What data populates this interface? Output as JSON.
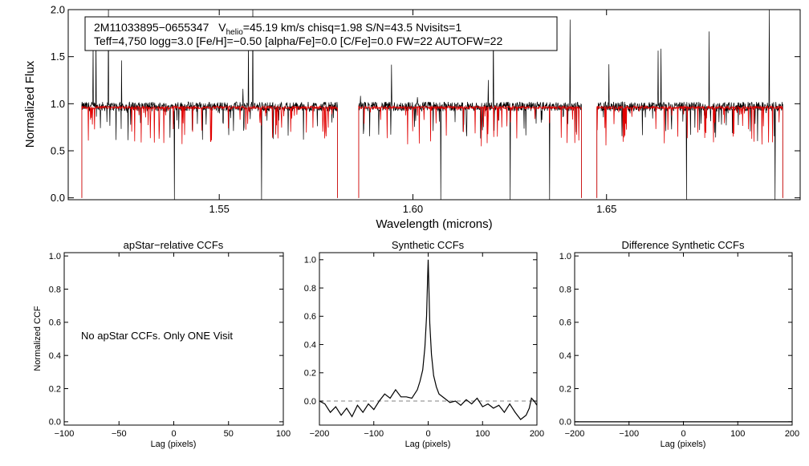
{
  "colors": {
    "observed": "#000000",
    "model": "#e00000",
    "zero_line": "#808080"
  },
  "chart_data": [
    {
      "type": "line",
      "id": "spectrum",
      "xlabel": "Wavelength (microns)",
      "ylabel": "Normalized Flux",
      "xlim": [
        1.511,
        1.7
      ],
      "ylim": [
        -0.02,
        2.0
      ],
      "xticks": [
        "1.55",
        "1.60",
        "1.65"
      ],
      "xtick_values": [
        1.55,
        1.6,
        1.65
      ],
      "yticks": [
        "0.0",
        "0.5",
        "1.0",
        "1.5",
        "2.0"
      ],
      "ytick_values": [
        0.0,
        0.5,
        1.0,
        1.5,
        2.0
      ],
      "chips": [
        [
          1.5145,
          1.5805
        ],
        [
          1.586,
          1.6435
        ],
        [
          1.6475,
          1.6955
        ]
      ],
      "series": [
        {
          "color": "black",
          "baseline": 0.97
        },
        {
          "color": "red",
          "baseline": 0.96
        }
      ],
      "info": {
        "line1_id": "2M11033895−0655347",
        "line1_v": "V",
        "line1_sub": "helio",
        "line1_rest": "=45.19 km/s  chisq=1.98  S/N=43.5  Nvisits=1",
        "line2": "Teff=4,750 logg=3.0 [Fe/H]=−0.50 [alpha/Fe]=0.0 [C/Fe]=0.0 FW=22 AUTOFW=22"
      }
    },
    {
      "type": "line",
      "id": "apstar_ccf",
      "title": "apStar−relative CCFs",
      "xlabel": "Lag (pixels)",
      "ylabel": "Normalized CCF",
      "xlim": [
        -100,
        100
      ],
      "ylim": [
        -0.02,
        1.02
      ],
      "xticks": [
        "−100",
        "−50",
        "0",
        "50",
        "100"
      ],
      "xtick_values": [
        -100,
        -50,
        0,
        50,
        100
      ],
      "yticks": [
        "0.0",
        "0.2",
        "0.4",
        "0.6",
        "0.8",
        "1.0"
      ],
      "ytick_values": [
        0.0,
        0.2,
        0.4,
        0.6,
        0.8,
        1.0
      ],
      "annotation": "No apStar CCFs.  Only ONE Visit",
      "series": []
    },
    {
      "type": "line",
      "id": "synthetic_ccf",
      "title": "Synthetic CCFs",
      "xlabel": "Lag (pixels)",
      "xlim": [
        -200,
        200
      ],
      "ylim": [
        -0.17,
        1.05
      ],
      "xticks": [
        "−200",
        "−100",
        "0",
        "100",
        "200"
      ],
      "xtick_values": [
        -200,
        -100,
        0,
        100,
        200
      ],
      "yticks": [
        "0.0",
        "0.2",
        "0.4",
        "0.6",
        "0.8",
        "1.0"
      ],
      "ytick_values": [
        0.0,
        0.2,
        0.4,
        0.6,
        0.8,
        1.0
      ],
      "series": [
        {
          "color": "black",
          "x": [
            -200,
            -190,
            -180,
            -170,
            -160,
            -150,
            -140,
            -130,
            -120,
            -110,
            -100,
            -90,
            -80,
            -70,
            -60,
            -50,
            -40,
            -30,
            -20,
            -15,
            -10,
            -6,
            -3,
            -1,
            0,
            1,
            3,
            6,
            10,
            15,
            20,
            30,
            40,
            50,
            60,
            70,
            80,
            90,
            100,
            110,
            120,
            130,
            140,
            150,
            160,
            170,
            180,
            186,
            190,
            195,
            200
          ],
          "y": [
            0.0,
            -0.02,
            -0.08,
            -0.04,
            -0.1,
            -0.05,
            -0.11,
            -0.03,
            -0.08,
            -0.02,
            -0.06,
            0.0,
            0.05,
            0.02,
            0.08,
            0.03,
            0.03,
            0.02,
            0.08,
            0.14,
            0.22,
            0.38,
            0.6,
            0.87,
            1.0,
            0.85,
            0.55,
            0.33,
            0.18,
            0.1,
            0.05,
            0.02,
            -0.01,
            0.0,
            -0.03,
            0.01,
            -0.02,
            0.02,
            -0.04,
            -0.02,
            -0.05,
            -0.03,
            -0.08,
            -0.02,
            -0.08,
            -0.13,
            -0.1,
            -0.05,
            0.02,
            0.0,
            -0.03
          ]
        }
      ],
      "zero_line": true
    },
    {
      "type": "line",
      "id": "diff_ccf",
      "title": "Difference Synthetic CCFs",
      "xlabel": "Lag (pixels)",
      "xlim": [
        -200,
        200
      ],
      "ylim": [
        -0.02,
        1.02
      ],
      "xticks": [
        "−200",
        "−100",
        "0",
        "100",
        "200"
      ],
      "xtick_values": [
        -200,
        -100,
        0,
        100,
        200
      ],
      "yticks": [
        "0.0",
        "0.2",
        "0.4",
        "0.6",
        "0.8",
        "1.0"
      ],
      "ytick_values": [
        0.0,
        0.2,
        0.4,
        0.6,
        0.8,
        1.0
      ],
      "series": [
        {
          "color": "black",
          "x": [
            -200,
            200
          ],
          "y": [
            0.0,
            0.0
          ]
        }
      ]
    }
  ]
}
